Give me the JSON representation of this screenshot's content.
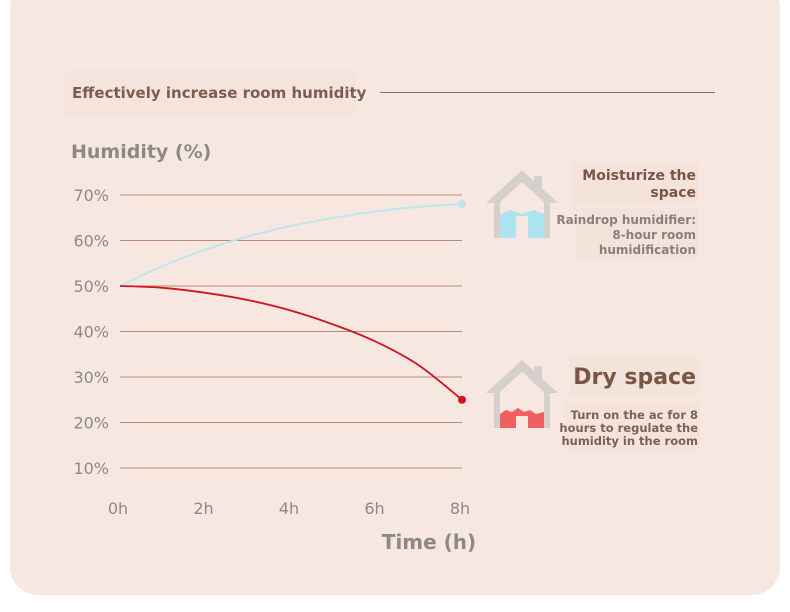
{
  "header": {
    "title": "Effectively increase room humidity"
  },
  "chart_data": {
    "type": "line",
    "title": "Effectively increase room humidity",
    "ylabel": "Humidity (%)",
    "xlabel": "Time (h)",
    "categories": [
      "0h",
      "2h",
      "4h",
      "6h",
      "8h"
    ],
    "y_ticks": [
      "70%",
      "60%",
      "50%",
      "40%",
      "30%",
      "20%",
      "10%"
    ],
    "ylim": [
      10,
      70
    ],
    "xlim": [
      0,
      8
    ],
    "series": [
      {
        "name": "Moisturize the space",
        "color": "#bfe6ee",
        "x": [
          0,
          1,
          2,
          3,
          4,
          5,
          6,
          7,
          8
        ],
        "values": [
          50,
          54.4,
          58.0,
          60.9,
          63.2,
          65.0,
          66.4,
          67.4,
          68
        ]
      },
      {
        "name": "Dry space",
        "color": "#d1131d",
        "x": [
          0,
          1,
          2,
          3,
          4,
          5,
          6,
          7,
          8
        ],
        "values": [
          50,
          49.6,
          48.5,
          46.9,
          44.6,
          41.5,
          37.7,
          32.5,
          25
        ]
      }
    ]
  },
  "legend": {
    "moisturize": {
      "title": "Moisturize the space",
      "desc": "Raindrop humidifier: 8-hour room humidification",
      "house_color": "#aee4ef",
      "icon": "house-icon"
    },
    "dry": {
      "title": "Dry space",
      "desc": "Turn on the ac for 8 hours to regulate the humidity in the room",
      "house_color": "#f06060",
      "icon": "house-icon"
    }
  }
}
